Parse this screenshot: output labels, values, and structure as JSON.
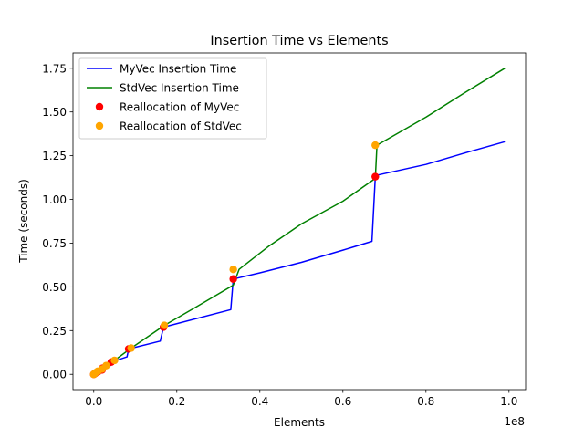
{
  "chart_data": {
    "type": "line",
    "title": "Insertion Time vs Elements",
    "xlabel": "Elements",
    "ylabel": "Time (seconds)",
    "x_offset_label": "1e8",
    "xlim": [
      -5000000,
      104000000
    ],
    "ylim": [
      -0.0875,
      1.8375
    ],
    "x_ticks": [
      0,
      20000000,
      40000000,
      60000000,
      80000000,
      100000000
    ],
    "x_tick_labels": [
      "0.0",
      "0.2",
      "0.4",
      "0.6",
      "0.8",
      "1.0"
    ],
    "y_ticks": [
      0.0,
      0.25,
      0.5,
      0.75,
      1.0,
      1.25,
      1.5,
      1.75
    ],
    "y_tick_labels": [
      "0.00",
      "0.25",
      "0.50",
      "0.75",
      "1.00",
      "1.25",
      "1.50",
      "1.75"
    ],
    "grid": false,
    "legend_position": "top-left",
    "series": [
      {
        "name": "MyVec Insertion Time",
        "kind": "line",
        "color": "#0000ff",
        "x": [
          0,
          500000,
          1000000,
          2000000,
          2100000,
          4000000,
          4200000,
          8000000,
          8400000,
          16000000,
          16800000,
          33000000,
          33600000,
          40000000,
          50000000,
          60000000,
          67000000,
          67800000,
          68500000,
          80000000,
          90000000,
          99000000
        ],
        "y": [
          0.0,
          0.008,
          0.015,
          0.025,
          0.035,
          0.05,
          0.07,
          0.1,
          0.145,
          0.19,
          0.27,
          0.37,
          0.545,
          0.58,
          0.64,
          0.71,
          0.76,
          1.13,
          1.14,
          1.2,
          1.27,
          1.33
        ]
      },
      {
        "name": "StdVec Insertion Time",
        "kind": "line",
        "color": "#008000",
        "x": [
          0,
          500000,
          1000000,
          2000000,
          3000000,
          5000000,
          9000000,
          17000000,
          25000000,
          33600000,
          35000000,
          42000000,
          50000000,
          60000000,
          67800000,
          68200000,
          80000000,
          90000000,
          99000000
        ],
        "y": [
          0.0,
          0.01,
          0.018,
          0.03,
          0.05,
          0.08,
          0.15,
          0.28,
          0.39,
          0.51,
          0.6,
          0.73,
          0.86,
          0.99,
          1.12,
          1.31,
          1.47,
          1.62,
          1.75
        ]
      },
      {
        "name": "Reallocation of MyVec",
        "kind": "scatter",
        "color": "#ff0000",
        "x": [
          0,
          200000,
          500000,
          1000000,
          2000000,
          2100000,
          4200000,
          8400000,
          16800000,
          33600000,
          67800000
        ],
        "y": [
          0.0,
          0.003,
          0.008,
          0.015,
          0.025,
          0.035,
          0.07,
          0.145,
          0.27,
          0.545,
          1.13
        ]
      },
      {
        "name": "Reallocation of StdVec",
        "kind": "scatter",
        "color": "#ffa500",
        "x": [
          0,
          200000,
          500000,
          1000000,
          2000000,
          3000000,
          5000000,
          9000000,
          17000000,
          33600000,
          67800000
        ],
        "y": [
          0.0,
          0.004,
          0.01,
          0.018,
          0.03,
          0.05,
          0.08,
          0.15,
          0.28,
          0.6,
          1.31
        ]
      }
    ]
  }
}
